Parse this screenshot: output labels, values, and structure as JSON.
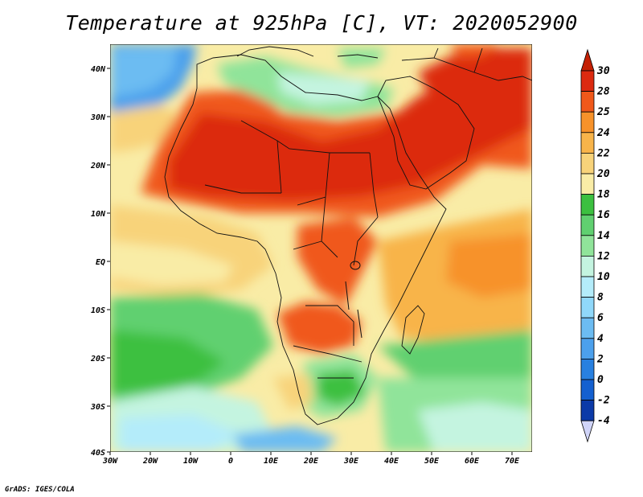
{
  "title": "Temperature at 925hPa [C], VT: 2020052900",
  "credit": "GrADS: IGES/COLA",
  "map": {
    "lon_range": [
      -30,
      75
    ],
    "lat_range": [
      -40,
      45
    ],
    "lat_ticks": [
      "40N",
      "30N",
      "20N",
      "10N",
      "EQ",
      "10S",
      "20S",
      "30S",
      "40S"
    ],
    "lon_ticks": [
      "30W",
      "20W",
      "10W",
      "0",
      "10E",
      "20E",
      "30E",
      "40E",
      "50E",
      "60E",
      "70E"
    ]
  },
  "colorbar": {
    "labels": [
      "30",
      "28",
      "25",
      "24",
      "22",
      "20",
      "18",
      "16",
      "14",
      "12",
      "10",
      "8",
      "6",
      "4",
      "2",
      "0",
      "-2",
      "-4"
    ],
    "colors": [
      "#dc2a10",
      "#f0581a",
      "#f7922a",
      "#f8b44a",
      "#f8d37a",
      "#f9eca6",
      "#3cc040",
      "#60d070",
      "#90e49a",
      "#c4f4e0",
      "#b4ecfa",
      "#90d8fa",
      "#6cbcf2",
      "#4ca0ec",
      "#2880e0",
      "#1460d0",
      "#0c3aa8"
    ],
    "top_color": "#c42004",
    "bottom_color": "#d0d4f8"
  }
}
